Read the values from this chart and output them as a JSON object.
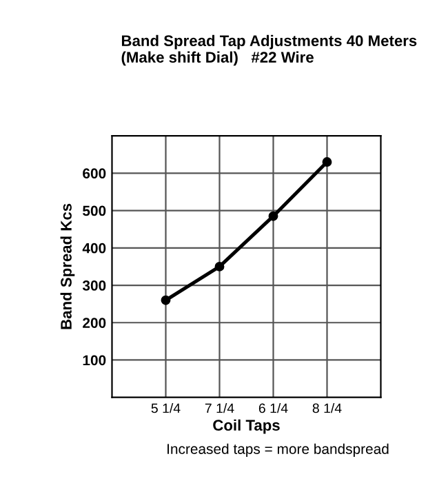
{
  "chart_data": {
    "type": "line",
    "title": "Band Spread Tap Adjustments 40 Meters\n(Make shift Dial)   #22 Wire",
    "xlabel": "Coil Taps",
    "ylabel": "Band Spread Kcs",
    "categories": [
      "5 1/4",
      "7 1/4",
      "6 1/4",
      "8 1/4"
    ],
    "series": [
      {
        "color": "#000000",
        "values": [
          260,
          350,
          485,
          630
        ]
      }
    ],
    "ylim": [
      0,
      700
    ],
    "yticks": [
      100,
      200,
      300,
      400,
      500,
      600
    ],
    "grid": true,
    "marker": "circle",
    "line_style": "solid",
    "annotations": [
      "Increased taps = more bandspread"
    ]
  }
}
